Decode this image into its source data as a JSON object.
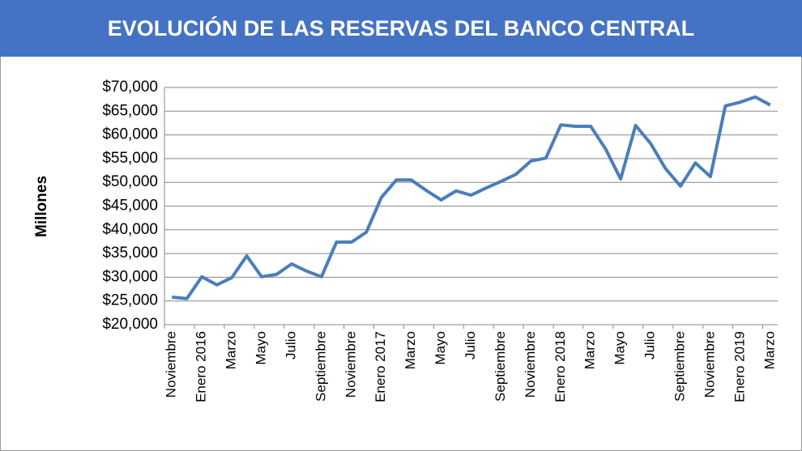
{
  "chart_data": {
    "type": "line",
    "title": "EVOLUCIÓN DE LAS RESERVAS DEL BANCO CENTRAL",
    "y_label": "Millones",
    "categories": [
      "Noviembre",
      null,
      "Enero 2016",
      null,
      "Marzo",
      null,
      "Mayo",
      null,
      "Julio",
      null,
      "Septiembre",
      null,
      "Noviembre",
      null,
      "Enero 2017",
      null,
      "Marzo",
      null,
      "Mayo",
      null,
      "Julio",
      null,
      "Septiembre",
      null,
      "Noviembre",
      null,
      "Enero 2018",
      null,
      "Marzo",
      null,
      "Mayo",
      null,
      "Julio",
      null,
      "Septiembre",
      null,
      "Noviembre",
      null,
      "Enero 2019",
      null,
      "Marzo"
    ],
    "values": [
      25800,
      25500,
      30100,
      28400,
      29900,
      34500,
      30100,
      30600,
      32800,
      31300,
      30100,
      37400,
      37400,
      39500,
      46800,
      50500,
      50500,
      48300,
      46300,
      48200,
      47300,
      48800,
      50200,
      51700,
      54500,
      55100,
      62100,
      61800,
      61800,
      57000,
      50700,
      62000,
      58200,
      52900,
      49200,
      54100,
      51200,
      66100,
      66900,
      68000,
      66300
    ],
    "color": "#4a7ebb",
    "ylim": [
      20000,
      70000
    ],
    "yticks": [
      {
        "value": 20000,
        "label": "$20,000"
      },
      {
        "value": 25000,
        "label": "$25,000"
      },
      {
        "value": 30000,
        "label": "$30,000"
      },
      {
        "value": 35000,
        "label": "$35,000"
      },
      {
        "value": 40000,
        "label": "$40,000"
      },
      {
        "value": 45000,
        "label": "$45,000"
      },
      {
        "value": 50000,
        "label": "$50,000"
      },
      {
        "value": 55000,
        "label": "$55,000"
      },
      {
        "value": 60000,
        "label": "$60,000"
      },
      {
        "value": 65000,
        "label": "$65,000"
      },
      {
        "value": 70000,
        "label": "$70,000"
      }
    ],
    "grid": true
  }
}
